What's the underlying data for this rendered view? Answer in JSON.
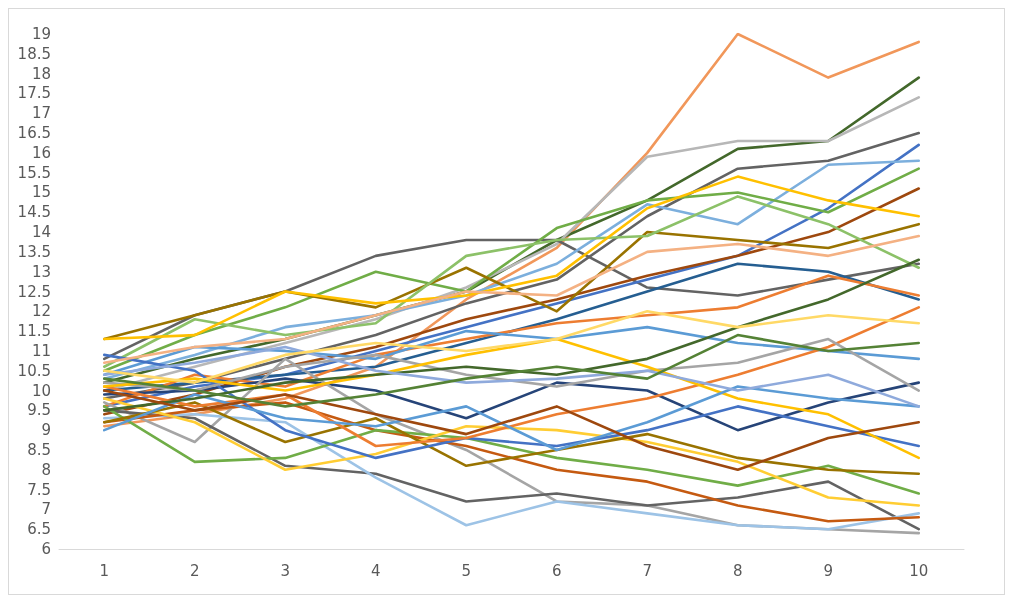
{
  "chart_data": {
    "type": "line",
    "categories": [
      "1",
      "2",
      "3",
      "4",
      "5",
      "6",
      "7",
      "8",
      "9",
      "10"
    ],
    "ylim": [
      6,
      19
    ],
    "yticks": [
      6,
      6.5,
      7,
      7.5,
      8,
      8.5,
      9,
      9.5,
      10,
      10.5,
      11,
      11.5,
      12,
      12.5,
      13,
      13.5,
      14,
      14.5,
      15,
      15.5,
      16,
      16.5,
      17,
      17.5,
      18,
      18.5,
      19
    ],
    "grid": false,
    "marker": "none",
    "line_style": "solid",
    "series": [
      {
        "color": "#f1975a",
        "values": [
          9.1,
          9.4,
          9.8,
          10.6,
          12.3,
          13.6,
          16.0,
          19.0,
          17.9,
          18.8
        ]
      },
      {
        "color": "#43682b",
        "values": [
          10.2,
          10.8,
          11.3,
          11.9,
          12.5,
          13.8,
          14.8,
          16.1,
          16.3,
          17.9
        ]
      },
      {
        "color": "#b7b7b7",
        "values": [
          10.0,
          10.6,
          11.2,
          11.8,
          12.6,
          13.7,
          15.9,
          16.3,
          16.3,
          17.4
        ]
      },
      {
        "color": "#636363",
        "values": [
          9.8,
          10.2,
          10.8,
          11.4,
          12.2,
          12.8,
          14.4,
          15.6,
          15.8,
          16.5
        ]
      },
      {
        "color": "#636363",
        "values": [
          10.8,
          11.9,
          12.5,
          13.4,
          13.8,
          13.8,
          12.6,
          12.4,
          12.8,
          13.2
        ]
      },
      {
        "color": "#4472c4",
        "values": [
          9.6,
          10.1,
          10.4,
          11.0,
          11.6,
          12.2,
          12.8,
          13.4,
          14.6,
          16.2
        ]
      },
      {
        "color": "#7cafdd",
        "values": [
          10.3,
          10.9,
          11.6,
          11.9,
          12.4,
          13.2,
          14.7,
          14.2,
          15.7,
          15.8
        ]
      },
      {
        "color": "#70ad47",
        "values": [
          10.5,
          11.4,
          12.1,
          13.0,
          12.5,
          14.1,
          14.8,
          15.0,
          14.5,
          15.6
        ]
      },
      {
        "color": "#9e480e",
        "values": [
          9.4,
          9.9,
          10.6,
          11.1,
          11.8,
          12.3,
          12.9,
          13.4,
          14.0,
          15.1
        ]
      },
      {
        "color": "#997300",
        "values": [
          11.3,
          11.9,
          12.5,
          12.1,
          13.1,
          12.0,
          14.0,
          13.8,
          13.6,
          14.2
        ]
      },
      {
        "color": "#8cc168",
        "values": [
          10.6,
          11.8,
          11.4,
          11.7,
          13.4,
          13.8,
          13.9,
          14.9,
          14.2,
          13.1
        ]
      },
      {
        "color": "#ffc000",
        "values": [
          11.3,
          11.4,
          12.5,
          12.2,
          12.4,
          12.9,
          14.6,
          15.4,
          14.8,
          14.4
        ]
      },
      {
        "color": "#255e91",
        "values": [
          10.0,
          10.2,
          10.4,
          10.6,
          11.2,
          11.8,
          12.5,
          13.2,
          13.0,
          12.3
        ]
      },
      {
        "color": "#ed7d31",
        "values": [
          9.6,
          10.4,
          10.1,
          10.9,
          11.3,
          11.7,
          11.9,
          12.1,
          12.9,
          12.4
        ]
      },
      {
        "color": "#5b9bd5",
        "values": [
          10.4,
          11.1,
          11.0,
          10.8,
          11.5,
          11.3,
          11.6,
          11.2,
          11.0,
          10.8
        ]
      },
      {
        "color": "#264478",
        "values": [
          9.9,
          10.0,
          10.3,
          10.0,
          9.3,
          10.2,
          10.0,
          9.0,
          9.7,
          10.2
        ]
      },
      {
        "color": "#a5a5a5",
        "values": [
          9.7,
          8.7,
          10.8,
          9.4,
          8.5,
          7.2,
          7.1,
          6.6,
          6.5,
          6.4
        ]
      },
      {
        "color": "#636363",
        "values": [
          9.5,
          9.3,
          8.1,
          7.9,
          7.2,
          7.4,
          7.1,
          7.3,
          7.7,
          6.5
        ]
      },
      {
        "color": "#9dc3e6",
        "values": [
          9.3,
          9.4,
          9.2,
          7.8,
          6.6,
          7.2,
          6.9,
          6.6,
          6.5,
          6.9
        ]
      },
      {
        "color": "#c55a11",
        "values": [
          9.2,
          9.5,
          9.7,
          9.0,
          8.6,
          8.0,
          7.7,
          7.1,
          6.7,
          6.8
        ]
      },
      {
        "color": "#70ad47",
        "values": [
          9.6,
          8.2,
          8.3,
          9.0,
          8.8,
          8.3,
          8.0,
          7.6,
          8.1,
          7.4
        ]
      },
      {
        "color": "#ffcd33",
        "values": [
          9.8,
          9.2,
          8.0,
          8.4,
          9.1,
          9.0,
          8.7,
          8.2,
          7.3,
          7.1
        ]
      },
      {
        "color": "#997300",
        "values": [
          9.2,
          9.7,
          8.7,
          9.3,
          8.1,
          8.5,
          8.9,
          8.3,
          8.0,
          7.9
        ]
      },
      {
        "color": "#4472c4",
        "values": [
          10.9,
          10.5,
          9.0,
          8.3,
          8.8,
          8.6,
          9.0,
          9.6,
          9.1,
          8.6
        ]
      },
      {
        "color": "#ed7d31",
        "values": [
          10.1,
          9.6,
          9.9,
          8.6,
          8.8,
          9.4,
          9.8,
          10.4,
          11.1,
          12.1
        ]
      },
      {
        "color": "#a5a5a5",
        "values": [
          10.2,
          10.0,
          10.6,
          10.9,
          10.4,
          10.1,
          10.5,
          10.7,
          11.3,
          10.0
        ]
      },
      {
        "color": "#ffc000",
        "values": [
          10.1,
          10.3,
          10.0,
          10.4,
          10.9,
          11.3,
          10.6,
          9.8,
          9.4,
          8.3
        ]
      },
      {
        "color": "#5b9bd5",
        "values": [
          9.0,
          9.9,
          9.3,
          9.1,
          9.6,
          8.5,
          9.2,
          10.1,
          9.8,
          9.6
        ]
      },
      {
        "color": "#43682b",
        "values": [
          9.5,
          9.8,
          10.2,
          10.4,
          10.6,
          10.4,
          10.8,
          11.6,
          12.3,
          13.3
        ]
      },
      {
        "color": "#f4b183",
        "values": [
          10.7,
          11.1,
          11.3,
          11.9,
          12.5,
          12.4,
          13.5,
          13.7,
          13.4,
          13.9
        ]
      },
      {
        "color": "#9e480e",
        "values": [
          10.0,
          9.5,
          9.9,
          9.4,
          8.9,
          9.6,
          8.6,
          8.0,
          8.8,
          9.2
        ]
      },
      {
        "color": "#8faadc",
        "values": [
          10.4,
          10.7,
          11.1,
          10.5,
          10.2,
          10.3,
          10.5,
          10.0,
          10.4,
          9.6
        ]
      },
      {
        "color": "#548235",
        "values": [
          10.3,
          10.0,
          9.6,
          9.9,
          10.3,
          10.6,
          10.3,
          11.4,
          11.0,
          11.2
        ]
      },
      {
        "color": "#ffd966",
        "values": [
          10.5,
          10.2,
          10.9,
          11.2,
          11.0,
          11.3,
          12.0,
          11.6,
          11.9,
          11.7
        ]
      }
    ]
  }
}
